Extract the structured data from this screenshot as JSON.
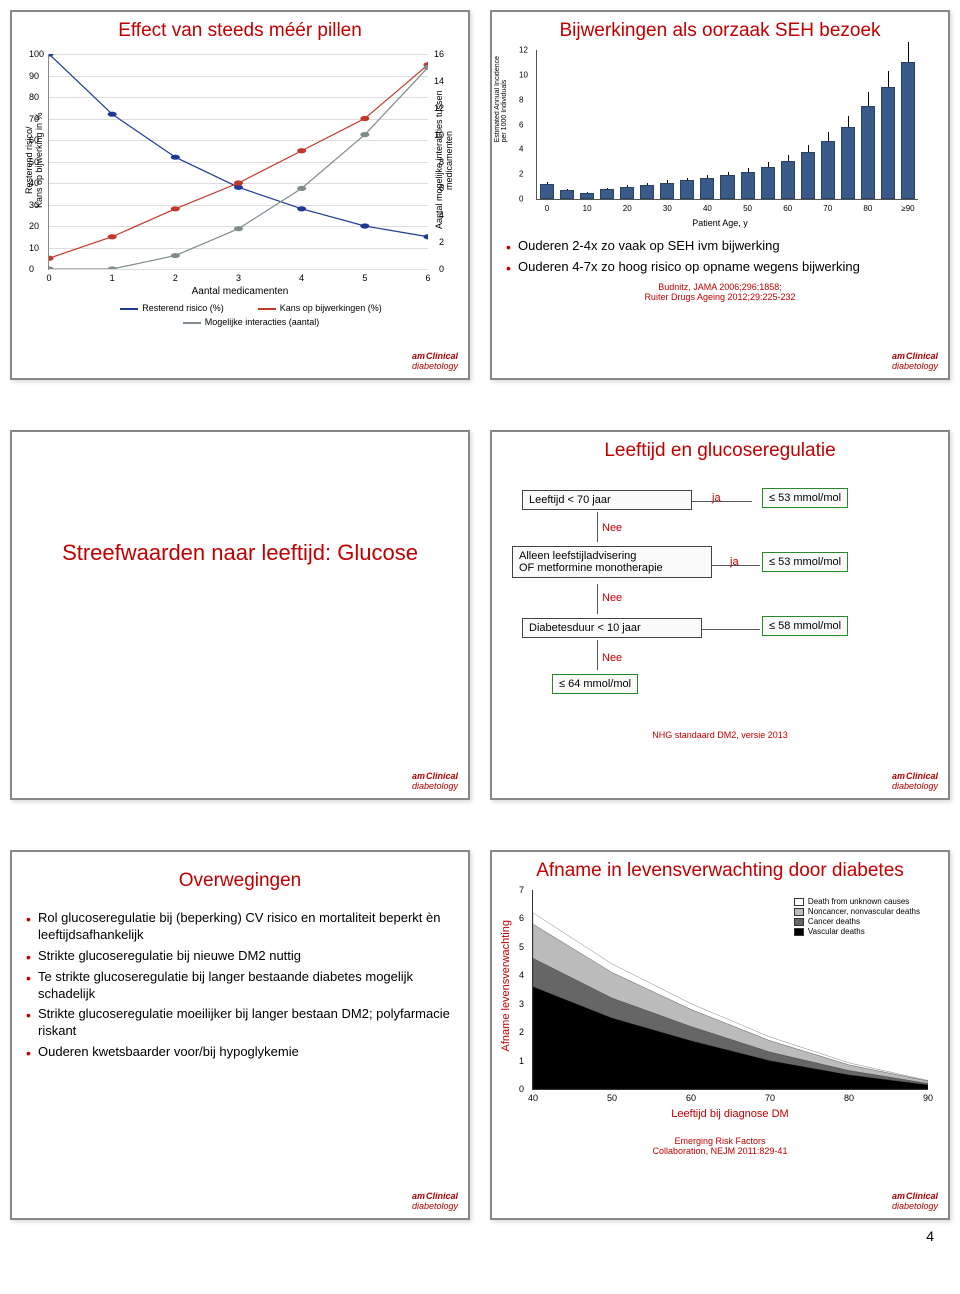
{
  "page_number": "4",
  "logo": {
    "top": "Clinical",
    "sub": "diabetology"
  },
  "slide1": {
    "title": "Effect van steeds méér pillen",
    "ylabel_left": "Resterend risico/\nKans op bijwerking in %",
    "ylabel_right": "Aantal mogelijke interacties tussen\nmedicamenten",
    "xlabel": "Aantal medicamenten",
    "left_ticks": [
      0,
      10,
      20,
      30,
      40,
      50,
      60,
      70,
      80,
      90,
      100
    ],
    "right_ticks": [
      0,
      2,
      4,
      6,
      8,
      10,
      12,
      14,
      16
    ],
    "x_ticks": [
      0,
      1,
      2,
      3,
      4,
      5,
      6
    ],
    "series": [
      {
        "label": "Resterend risico (%)",
        "color": "#1f3a93",
        "values": [
          100,
          72,
          52,
          38,
          28,
          20,
          15
        ]
      },
      {
        "label": "Kans op bijwerkingen (%)",
        "color": "#c0392b",
        "values": [
          5,
          15,
          28,
          40,
          55,
          70,
          95
        ]
      },
      {
        "label": "Mogelijke interacties (aantal)",
        "color": "#7f8c8d",
        "values_r": [
          0,
          0,
          1,
          3,
          6,
          10,
          15
        ]
      }
    ]
  },
  "slide2": {
    "title": "Bijwerkingen als oorzaak SEH bezoek",
    "chart_ylabel": "Estimated Annual Incidence\nper 1000 Individuals",
    "chart_xlabel": "Patient Age, y",
    "x_categories": [
      "0",
      "5",
      "10",
      "15",
      "20",
      "25",
      "30",
      "35",
      "40",
      "45",
      "50",
      "55",
      "60",
      "65",
      "70",
      "75",
      "80",
      "85",
      "≥90"
    ],
    "y_max": 12,
    "y_ticks": [
      0,
      2,
      4,
      6,
      8,
      10,
      12
    ],
    "bar_values": [
      1.2,
      0.7,
      0.5,
      0.8,
      1.0,
      1.1,
      1.3,
      1.5,
      1.7,
      1.9,
      2.2,
      2.6,
      3.1,
      3.8,
      4.7,
      5.8,
      7.5,
      9.0,
      11.0
    ],
    "bar_color": "#3a5a8a",
    "bullets": [
      "Ouderen 2-4x zo vaak op SEH ivm bijwerking",
      "Ouderen 4-7x zo hoog risico op opname wegens bijwerking"
    ],
    "citation": "Budnitz, JAMA 2006;296;1858;\nRuiter Drugs Ageing 2012;29:225-232"
  },
  "slide3": {
    "title": "Streefwaarden naar leeftijd: Glucose"
  },
  "slide4": {
    "title": "Leeftijd en glucoseregulatie",
    "box1": "Leeftijd < 70 jaar",
    "box2": "Alleen leefstijladvisering\nOF metformine monotherapie",
    "box3": "Diabetesduur < 10 jaar",
    "r1": "≤ 53 mmol/mol",
    "r2": "≤ 53 mmol/mol",
    "r3": "≤ 58 mmol/mol",
    "r4": "≤ 64 mmol/mol",
    "ja": "ja",
    "nee": "Nee",
    "citation": "NHG standaard DM2, versie 2013"
  },
  "slide5": {
    "title": "Overwegingen",
    "bullets": [
      "Rol glucoseregulatie bij (beperking) CV risico en mortaliteit beperkt èn leeftijdsafhankelijk",
      "Strikte glucoseregulatie bij nieuwe DM2 nuttig",
      "Te strikte glucoseregulatie bij langer bestaande diabetes mogelijk schadelijk",
      "Strikte glucoseregulatie moeilijker bij langer bestaan DM2; polyfarmacie riskant",
      "Ouderen kwetsbaarder voor/bij hypoglykemie"
    ]
  },
  "slide6": {
    "title": "Afname in levensverwachting door diabetes",
    "ylabel": "Afname levensverwachting",
    "xlabel": "Leeftijd bij diagnose DM",
    "x_ticks": [
      40,
      50,
      60,
      70,
      80,
      90
    ],
    "y_ticks": [
      0,
      1,
      2,
      3,
      4,
      5,
      6,
      7
    ],
    "legend": [
      {
        "label": "Death from unknown causes",
        "color": "#ffffff"
      },
      {
        "label": "Noncancer, nonvascular deaths",
        "color": "#bbbbbb"
      },
      {
        "label": "Cancer deaths",
        "color": "#666666"
      },
      {
        "label": "Vascular deaths",
        "color": "#000000"
      }
    ],
    "stacks": {
      "x": [
        40,
        50,
        60,
        70,
        80,
        90
      ],
      "vascular": [
        3.6,
        2.5,
        1.7,
        1.0,
        0.5,
        0.15
      ],
      "cancer": [
        1.0,
        0.7,
        0.5,
        0.3,
        0.15,
        0.05
      ],
      "noncancer": [
        1.2,
        0.9,
        0.6,
        0.4,
        0.2,
        0.08
      ],
      "unknown": [
        0.4,
        0.3,
        0.2,
        0.13,
        0.07,
        0.02
      ]
    },
    "citation": "Emerging Risk Factors\nCollaboration, NEJM 2011:829-41"
  }
}
